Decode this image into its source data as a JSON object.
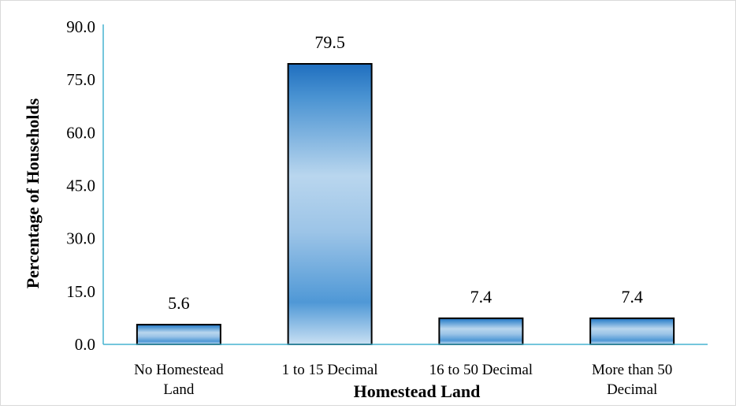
{
  "chart_data": {
    "type": "bar",
    "categories": [
      [
        "No Homestead",
        "Land"
      ],
      [
        "1 to 15 Decimal"
      ],
      [
        "16 to 50 Decimal"
      ],
      [
        "More than 50",
        "Decimal"
      ]
    ],
    "values": [
      5.6,
      79.5,
      7.4,
      7.4
    ],
    "data_labels": [
      "5.6",
      "79.5",
      "7.4",
      "7.4"
    ],
    "xlabel": "Homestead Land",
    "ylabel": "Percentage of Households",
    "ylim": [
      0,
      90
    ],
    "yticks": [
      "0.0",
      "15.0",
      "30.0",
      "45.0",
      "60.0",
      "75.0",
      "90.0"
    ],
    "grid": false,
    "legend": false,
    "colors": {
      "bar_dark": "#1f6fbf",
      "bar_light": "#c9e0f3",
      "bar_outline": "#000000",
      "axis": "#46b3d0"
    }
  }
}
